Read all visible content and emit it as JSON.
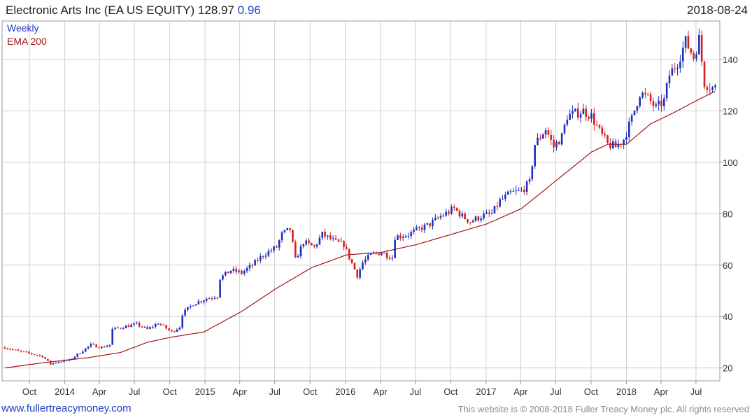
{
  "header": {
    "title": "Electronic Arts Inc (EA US EQUITY) 128.97",
    "change": "0.96",
    "date": "2018-08-24"
  },
  "footer": {
    "site": "www.fullertreacymoney.com",
    "copyright": "This website is © 2008-2018 Fuller Treacy Money plc. All rights reserved"
  },
  "colors": {
    "up": "#1f2fbf",
    "down": "#d42020",
    "ema": "#a01818",
    "grid": "#cfcfcf",
    "frame": "#999999"
  },
  "chart_data": {
    "type": "candlestick",
    "legend": [
      "Weekly",
      "EMA 200"
    ],
    "x_tick_labels": [
      "Oct",
      "2014",
      "Apr",
      "Jul",
      "Oct",
      "2015",
      "Apr",
      "Jul",
      "Oct",
      "2016",
      "Apr",
      "Jul",
      "Oct",
      "2017",
      "Apr",
      "Jul",
      "Oct",
      "2018",
      "Apr",
      "Jul"
    ],
    "y_tick_labels": [
      20,
      40,
      60,
      80,
      100,
      120,
      140
    ],
    "ylim": [
      15,
      155
    ],
    "grid": true,
    "legend_position": "top-left",
    "price_series": {
      "name": "Weekly",
      "points": [
        [
          "2013-07-29",
          28
        ],
        [
          "2013-09-02",
          26.5
        ],
        [
          "2013-10-07",
          25.5
        ],
        [
          "2013-11-04",
          24.5
        ],
        [
          "2013-11-25",
          21.5
        ],
        [
          "2013-12-16",
          22.5
        ],
        [
          "2014-01-13",
          23
        ],
        [
          "2014-02-10",
          26
        ],
        [
          "2014-03-10",
          29
        ],
        [
          "2014-04-07",
          28
        ],
        [
          "2014-04-28",
          29
        ],
        [
          "2014-05-05",
          35
        ],
        [
          "2014-06-02",
          36
        ],
        [
          "2014-07-07",
          37
        ],
        [
          "2014-08-04",
          35
        ],
        [
          "2014-09-01",
          37.5
        ],
        [
          "2014-10-06",
          34
        ],
        [
          "2014-10-27",
          36
        ],
        [
          "2014-11-03",
          41
        ],
        [
          "2014-12-01",
          45
        ],
        [
          "2015-01-05",
          47
        ],
        [
          "2015-02-02",
          48
        ],
        [
          "2015-02-09",
          55
        ],
        [
          "2015-03-09",
          58
        ],
        [
          "2015-04-06",
          57
        ],
        [
          "2015-05-04",
          60
        ],
        [
          "2015-06-01",
          64
        ],
        [
          "2015-07-06",
          67
        ],
        [
          "2015-07-20",
          72
        ],
        [
          "2015-08-10",
          74
        ],
        [
          "2015-08-24",
          62
        ],
        [
          "2015-09-14",
          69
        ],
        [
          "2015-10-12",
          67
        ],
        [
          "2015-11-02",
          72
        ],
        [
          "2015-12-07",
          69
        ],
        [
          "2015-12-28",
          68
        ],
        [
          "2016-01-11",
          63
        ],
        [
          "2016-02-01",
          56
        ],
        [
          "2016-02-15",
          61
        ],
        [
          "2016-03-07",
          64
        ],
        [
          "2016-04-04",
          65
        ],
        [
          "2016-05-02",
          63
        ],
        [
          "2016-05-09",
          71
        ],
        [
          "2016-06-13",
          72
        ],
        [
          "2016-07-11",
          74
        ],
        [
          "2016-08-08",
          76
        ],
        [
          "2016-09-05",
          79
        ],
        [
          "2016-10-10",
          82
        ],
        [
          "2016-10-31",
          79
        ],
        [
          "2016-11-21",
          77
        ],
        [
          "2016-12-19",
          79
        ],
        [
          "2017-01-16",
          80
        ],
        [
          "2017-02-06",
          85
        ],
        [
          "2017-03-06",
          88
        ],
        [
          "2017-04-03",
          89
        ],
        [
          "2017-04-24",
          92
        ],
        [
          "2017-05-08",
          107
        ],
        [
          "2017-06-05",
          113
        ],
        [
          "2017-06-26",
          106
        ],
        [
          "2017-07-17",
          110
        ],
        [
          "2017-07-31",
          118
        ],
        [
          "2017-08-21",
          119
        ],
        [
          "2017-09-11",
          120
        ],
        [
          "2017-10-02",
          118
        ],
        [
          "2017-10-23",
          112
        ],
        [
          "2017-11-13",
          107
        ],
        [
          "2017-12-04",
          106
        ],
        [
          "2017-12-25",
          109
        ],
        [
          "2018-01-15",
          117
        ],
        [
          "2018-02-05",
          127
        ],
        [
          "2018-02-26",
          125
        ],
        [
          "2018-03-19",
          121
        ],
        [
          "2018-04-09",
          124
        ],
        [
          "2018-04-23",
          134
        ],
        [
          "2018-05-14",
          139
        ],
        [
          "2018-06-04",
          147
        ],
        [
          "2018-06-25",
          141
        ],
        [
          "2018-07-09",
          148
        ],
        [
          "2018-07-23",
          131
        ],
        [
          "2018-08-13",
          129
        ],
        [
          "2018-08-24",
          129
        ]
      ]
    },
    "ema_series": {
      "name": "EMA 200",
      "points": [
        [
          "2013-07-29",
          20
        ],
        [
          "2013-11-04",
          22
        ],
        [
          "2014-03-03",
          24
        ],
        [
          "2014-05-26",
          26
        ],
        [
          "2014-08-04",
          30
        ],
        [
          "2014-10-06",
          32
        ],
        [
          "2014-12-29",
          34
        ],
        [
          "2015-04-06",
          42
        ],
        [
          "2015-07-06",
          51
        ],
        [
          "2015-10-05",
          59
        ],
        [
          "2016-01-04",
          64
        ],
        [
          "2016-04-04",
          65
        ],
        [
          "2016-07-04",
          68
        ],
        [
          "2016-10-03",
          72
        ],
        [
          "2017-01-02",
          76
        ],
        [
          "2017-04-03",
          82
        ],
        [
          "2017-07-03",
          93
        ],
        [
          "2017-10-02",
          104
        ],
        [
          "2017-11-13",
          107
        ],
        [
          "2018-01-01",
          107
        ],
        [
          "2018-03-05",
          115
        ],
        [
          "2018-04-30",
          119
        ],
        [
          "2018-07-02",
          124
        ],
        [
          "2018-08-24",
          128
        ]
      ]
    }
  }
}
